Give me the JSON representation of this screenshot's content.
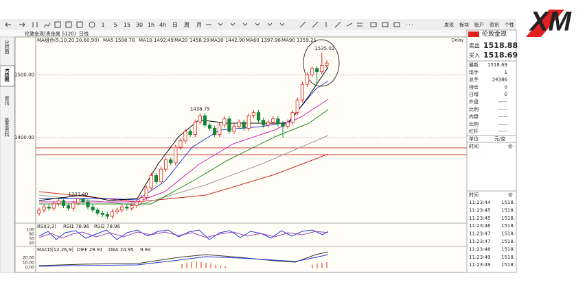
{
  "logo": "XM",
  "toolbar": {
    "periods": [
      "1",
      "5",
      "15",
      "30",
      "1h",
      "4h",
      "日",
      "周",
      "月"
    ],
    "menu": [
      "发现",
      "板块",
      "账户",
      "资讯",
      "个性"
    ]
  },
  "symbol_bar": {
    "name": "伦敦金现(贵金属 5120)",
    "period": "日线"
  },
  "side_tabs": [
    "分时图",
    "K线图",
    "资讯",
    "基本资料"
  ],
  "chart": {
    "indicator": "MA组合(5,10,20,30,60,90)",
    "ma": [
      {
        "text": "MA5 1508.78",
        "color": "#000000"
      },
      {
        "text": "MA10 1492.49",
        "color": "#2233dd"
      },
      {
        "text": "MA20 1458.29",
        "color": "#d020c0"
      },
      {
        "text": "MA30 1442.90",
        "color": "#1f8a2a"
      },
      {
        "text": "MA60 1397.96",
        "color": "#888888"
      },
      {
        "text": "MA90 1359.21",
        "color": "#cc2222"
      }
    ],
    "delay": "Delay",
    "ylim": [
      1262,
      1545
    ],
    "yticks": [
      {
        "value": 1500,
        "label": "1500.00"
      },
      {
        "value": 1400,
        "label": "1400.00"
      }
    ],
    "up_color": "#e02020",
    "down_color": "#14853a",
    "candles": [
      [
        1280,
        1289,
        1276,
        1285
      ],
      [
        1285,
        1294,
        1281,
        1290
      ],
      [
        1290,
        1294,
        1284,
        1288
      ],
      [
        1288,
        1299,
        1284,
        1295
      ],
      [
        1295,
        1302,
        1291,
        1300
      ],
      [
        1300,
        1302,
        1288,
        1292
      ],
      [
        1292,
        1296,
        1284,
        1288
      ],
      [
        1288,
        1300,
        1284,
        1296
      ],
      [
        1296,
        1303.4,
        1292,
        1303
      ],
      [
        1303,
        1303,
        1294,
        1298
      ],
      [
        1298,
        1302,
        1286,
        1290
      ],
      [
        1290,
        1294,
        1281,
        1285
      ],
      [
        1285,
        1289,
        1276,
        1280
      ],
      [
        1280,
        1284,
        1274,
        1278
      ],
      [
        1278,
        1282,
        1271,
        1275
      ],
      [
        1275,
        1286,
        1271,
        1282
      ],
      [
        1282,
        1289,
        1278,
        1285
      ],
      [
        1285,
        1294,
        1281,
        1290
      ],
      [
        1290,
        1294,
        1284,
        1288
      ],
      [
        1288,
        1296,
        1284,
        1292
      ],
      [
        1292,
        1302,
        1288,
        1298
      ],
      [
        1298,
        1309,
        1294,
        1305
      ],
      [
        1305,
        1324,
        1301,
        1320
      ],
      [
        1320,
        1344,
        1316,
        1340
      ],
      [
        1340,
        1344,
        1326,
        1330
      ],
      [
        1330,
        1354,
        1326,
        1350
      ],
      [
        1350,
        1369,
        1346,
        1365
      ],
      [
        1365,
        1369,
        1356,
        1360
      ],
      [
        1360,
        1389,
        1356,
        1385
      ],
      [
        1385,
        1399,
        1381,
        1395
      ],
      [
        1395,
        1414,
        1391,
        1410
      ],
      [
        1410,
        1414,
        1401,
        1405
      ],
      [
        1405,
        1429,
        1401,
        1425
      ],
      [
        1425,
        1438.75,
        1421,
        1435
      ],
      [
        1435,
        1439,
        1416,
        1420
      ],
      [
        1420,
        1424,
        1411,
        1415
      ],
      [
        1415,
        1419,
        1401,
        1405
      ],
      [
        1405,
        1424,
        1401,
        1420
      ],
      [
        1420,
        1434,
        1416,
        1430
      ],
      [
        1430,
        1434,
        1406,
        1410
      ],
      [
        1410,
        1422,
        1406,
        1418
      ],
      [
        1418,
        1429,
        1414,
        1425
      ],
      [
        1425,
        1429,
        1411,
        1415
      ],
      [
        1415,
        1439,
        1411,
        1435
      ],
      [
        1435,
        1444,
        1431,
        1440
      ],
      [
        1440,
        1444,
        1424,
        1428
      ],
      [
        1428,
        1432,
        1416,
        1420
      ],
      [
        1420,
        1429,
        1416,
        1425
      ],
      [
        1425,
        1434,
        1421,
        1430
      ],
      [
        1430,
        1434,
        1418,
        1422
      ],
      [
        1422,
        1426,
        1400,
        1418
      ],
      [
        1418,
        1429,
        1414,
        1425
      ],
      [
        1425,
        1444,
        1421,
        1440
      ],
      [
        1440,
        1464,
        1436,
        1460
      ],
      [
        1460,
        1489,
        1456,
        1485
      ],
      [
        1485,
        1504,
        1481,
        1500
      ],
      [
        1500,
        1514,
        1496,
        1510
      ],
      [
        1510,
        1514,
        1486,
        1505
      ],
      [
        1505,
        1535.01,
        1501,
        1515
      ],
      [
        1515,
        1523,
        1511,
        1518.69
      ]
    ],
    "annotations": [
      {
        "label": "1303.40",
        "candle": 8
      },
      {
        "label": "1438.75",
        "candle": 33
      },
      {
        "label": "1535.01",
        "candle": 58
      }
    ]
  },
  "rsi": {
    "title": "RSI(3,3)",
    "items": [
      "RSI1 78.96",
      "RSI2 78.96"
    ],
    "ticks": [
      "100",
      "80",
      "50",
      "20"
    ]
  },
  "macd": {
    "title": "MACD(12,26,9)",
    "items": [
      "DIFF 29.91",
      "DEA 24.95",
      "9.94"
    ],
    "ticks": [
      "20.00",
      "10.00",
      "0.00"
    ]
  },
  "quote": {
    "title": "伦敦金现",
    "sell_label": "卖出",
    "sell": "1518.88",
    "buy_label": "买入",
    "buy": "1518.69",
    "fields": [
      [
        "最新",
        "1518.69"
      ],
      [
        "现手",
        "1"
      ],
      [
        "总手",
        "24386"
      ],
      [
        "持仓",
        "0"
      ],
      [
        "日增",
        "0"
      ],
      [
        "外盘",
        "-----"
      ],
      [
        "比例",
        "-----"
      ],
      [
        "内盘",
        "-----"
      ],
      [
        "比例",
        "-----"
      ],
      [
        "杠杆",
        "-----"
      ]
    ],
    "unit_label": "单位",
    "unit": "元/克",
    "header": [
      "时间",
      "价"
    ],
    "trades": [
      [
        "11:23:44",
        "1518."
      ],
      [
        "11:23:45",
        "1518."
      ],
      [
        "11:23:45",
        "1518."
      ],
      [
        "11:23:46",
        "1518."
      ],
      [
        "11:23:47",
        "1518."
      ],
      [
        "11:23:47",
        "1518."
      ],
      [
        "11:23:48",
        "1518."
      ],
      [
        "11:23:49",
        "1518."
      ],
      [
        "11:23:49",
        "1518."
      ]
    ]
  }
}
